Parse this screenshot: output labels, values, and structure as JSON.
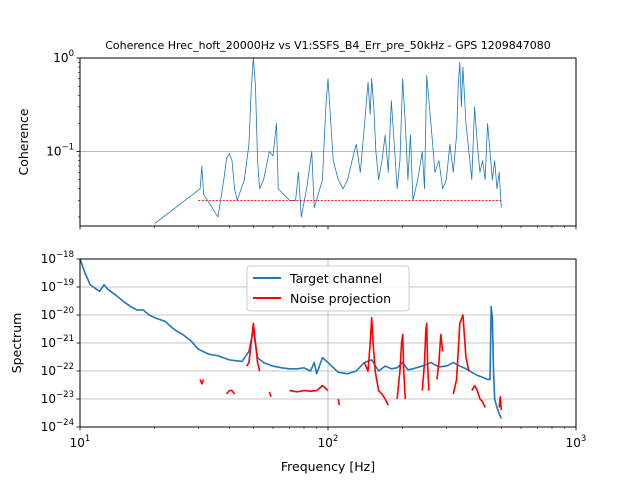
{
  "chart_data": [
    {
      "type": "line",
      "title": "Coherence Hrec_hoft_20000Hz vs V1:SSFS_B4_Err_pre_50kHz - GPS 1209847080",
      "xlabel": "",
      "ylabel": "Coherence",
      "xscale": "log",
      "yscale": "log",
      "xlim": [
        10,
        1000
      ],
      "ylim": [
        0.016,
        1
      ],
      "y_ticks": [
        {
          "base": "10",
          "exp": "−1",
          "value": 0.1
        },
        {
          "base": "10",
          "exp": "0",
          "value": 1
        }
      ],
      "grid": "horizontal major",
      "series": [
        {
          "color": "#1f77b4",
          "x": [
            20,
            30.5,
            31,
            31.5,
            36,
            38,
            39,
            40,
            41,
            42,
            43,
            46,
            48,
            49,
            50,
            51,
            52,
            53,
            55,
            58,
            60,
            62,
            63,
            70,
            74,
            76,
            78,
            82,
            86,
            88,
            95,
            98,
            100,
            105,
            110,
            115,
            120,
            125,
            130,
            135,
            140,
            145,
            148,
            150,
            153,
            156,
            160,
            165,
            170,
            175,
            180,
            185,
            190,
            195,
            200,
            205,
            210,
            215,
            220,
            230,
            240,
            245,
            250,
            260,
            270,
            280,
            290,
            300,
            310,
            320,
            330,
            335,
            340,
            345,
            350,
            360,
            370,
            380,
            390,
            400,
            410,
            420,
            430,
            440,
            450,
            460,
            470,
            480,
            490,
            500
          ],
          "y": [
            0.017,
            0.04,
            0.07,
            0.035,
            0.02,
            0.05,
            0.085,
            0.095,
            0.08,
            0.04,
            0.03,
            0.05,
            0.12,
            0.45,
            1.0,
            0.5,
            0.08,
            0.04,
            0.05,
            0.1,
            0.09,
            0.2,
            0.04,
            0.03,
            0.03,
            0.06,
            0.02,
            0.04,
            0.1,
            0.025,
            0.05,
            0.3,
            0.6,
            0.08,
            0.05,
            0.04,
            0.05,
            0.08,
            0.12,
            0.06,
            0.18,
            0.55,
            0.25,
            0.6,
            0.3,
            0.1,
            0.05,
            0.08,
            0.15,
            0.06,
            0.35,
            0.12,
            0.04,
            0.08,
            0.6,
            0.2,
            0.05,
            0.15,
            0.03,
            0.05,
            0.1,
            0.04,
            0.65,
            0.2,
            0.06,
            0.08,
            0.04,
            0.05,
            0.12,
            0.06,
            0.15,
            0.5,
            0.9,
            0.3,
            0.8,
            0.2,
            0.1,
            0.05,
            0.3,
            0.12,
            0.06,
            0.08,
            0.05,
            0.2,
            0.1,
            0.05,
            0.08,
            0.04,
            0.06,
            0.025
          ]
        },
        {
          "color": "#ff0000",
          "x": [
            30,
            500
          ],
          "y": [
            0.03,
            0.03
          ]
        }
      ]
    },
    {
      "type": "line",
      "title": "",
      "xlabel": "Frequency [Hz]",
      "ylabel": "Spectrum",
      "xscale": "log",
      "yscale": "log",
      "xlim": [
        10,
        1000
      ],
      "ylim": [
        1e-24,
        1e-18
      ],
      "x_ticks": [
        {
          "base": "10",
          "exp": "1",
          "value": 10
        },
        {
          "base": "10",
          "exp": "2",
          "value": 100
        },
        {
          "base": "10",
          "exp": "3",
          "value": 1000
        }
      ],
      "y_ticks": [
        {
          "base": "10",
          "exp": "−24",
          "value": 1e-24
        },
        {
          "base": "10",
          "exp": "−23",
          "value": 1e-23
        },
        {
          "base": "10",
          "exp": "−22",
          "value": 1e-22
        },
        {
          "base": "10",
          "exp": "−21",
          "value": 1e-21
        },
        {
          "base": "10",
          "exp": "−20",
          "value": 1e-20
        },
        {
          "base": "10",
          "exp": "−19",
          "value": 1e-19
        },
        {
          "base": "10",
          "exp": "−18",
          "value": 1e-18
        }
      ],
      "grid": "major",
      "legend_position": "upper-center",
      "series": [
        {
          "name": "Target channel",
          "color": "#1f77b4",
          "x": [
            10,
            10.5,
            11,
            11.5,
            12,
            12.5,
            13,
            14,
            15,
            16,
            17,
            18,
            19,
            20,
            22,
            24,
            26,
            28,
            30,
            33,
            36,
            40,
            45,
            48,
            50,
            52,
            55,
            60,
            65,
            70,
            75,
            80,
            85,
            88,
            90,
            95,
            100,
            110,
            120,
            130,
            140,
            150,
            160,
            170,
            180,
            190,
            200,
            210,
            220,
            240,
            260,
            280,
            300,
            320,
            340,
            360,
            380,
            400,
            420,
            440,
            450,
            455,
            460,
            465,
            470,
            480,
            490,
            500
          ],
          "y": [
            1e-18,
            3e-19,
            1.2e-19,
            9e-20,
            7e-20,
            1.2e-19,
            8e-20,
            5e-20,
            3e-20,
            2e-20,
            1.5e-20,
            1.5e-20,
            1e-20,
            8e-21,
            6e-21,
            3e-21,
            2e-21,
            1.2e-21,
            6e-22,
            4e-22,
            3.5e-22,
            2.5e-22,
            2.2e-22,
            5e-22,
            3e-21,
            3e-22,
            2e-22,
            1.5e-22,
            1.3e-22,
            1.2e-22,
            1.2e-22,
            1.3e-22,
            1e-22,
            2e-22,
            8e-23,
            3e-22,
            2e-22,
            9e-23,
            8e-23,
            1e-22,
            2e-22,
            2.5e-22,
            1e-22,
            1.5e-22,
            1.2e-22,
            1.3e-22,
            2e-22,
            1.1e-22,
            1.2e-22,
            1.5e-22,
            2e-22,
            1.4e-22,
            1.5e-22,
            2e-22,
            1.5e-22,
            1.2e-22,
            9e-23,
            7e-23,
            6e-23,
            5e-23,
            5e-23,
            2e-20,
            8e-21,
            1e-22,
            1e-23,
            5e-24,
            3e-24,
            2e-24
          ]
        },
        {
          "name": "Noise projection",
          "color": "#ff0000",
          "segments": [
            {
              "x": [
                30.5,
                31,
                31.5
              ],
              "y": [
                5e-23,
                3.5e-23,
                5e-23
              ]
            },
            {
              "x": [
                39,
                40,
                41,
                42
              ],
              "y": [
                1.5e-23,
                2e-23,
                2e-23,
                1.5e-23
              ]
            },
            {
              "x": [
                47,
                48,
                49,
                50,
                51,
                52,
                53
              ],
              "y": [
                1.5e-22,
                2e-22,
                1e-21,
                5e-21,
                1e-21,
                2e-22,
                1e-22
              ]
            },
            {
              "x": [
                58,
                59
              ],
              "y": [
                1.8e-23,
                1.2e-23
              ]
            },
            {
              "x": [
                70,
                75,
                80,
                85,
                90,
                95,
                100
              ],
              "y": [
                2e-23,
                1.8e-23,
                2e-23,
                1.9e-23,
                2e-23,
                3e-23,
                2e-23
              ]
            },
            {
              "x": [
                110,
                111
              ],
              "y": [
                1e-23,
                6e-24
              ]
            },
            {
              "x": [
                140,
                145,
                148,
                150,
                152,
                155,
                160,
                165,
                170,
                175
              ],
              "y": [
                2e-22,
                1e-22,
                1e-21,
                8e-21,
                1e-21,
                1e-22,
                2e-23,
                1.5e-23,
                1e-23,
                6e-24
              ]
            },
            {
              "x": [
                190,
                195,
                198,
                200,
                202,
                205
              ],
              "y": [
                1e-23,
                1e-22,
                1e-21,
                2e-21,
                1e-22,
                1e-23
              ]
            },
            {
              "x": [
                240,
                245,
                248,
                250,
                252,
                255
              ],
              "y": [
                2e-23,
                2e-22,
                3e-21,
                5e-21,
                2e-22,
                2e-23
              ]
            },
            {
              "x": [
                275,
                280,
                285,
                290
              ],
              "y": [
                5e-23,
                2e-22,
                2e-21,
                5e-22
              ]
            },
            {
              "x": [
                320,
                330,
                340,
                350,
                360,
                370
              ],
              "y": [
                1.5e-23,
                5e-23,
                5e-21,
                1e-20,
                3e-22,
                1e-22
              ]
            },
            {
              "x": [
                380,
                390,
                400,
                410,
                420,
                430
              ],
              "y": [
                2e-23,
                3e-23,
                2e-23,
                1e-23,
                8e-24,
                5e-24
              ]
            },
            {
              "x": [
                490,
                495,
                500
              ],
              "y": [
                5e-24,
                1.2e-23,
                4e-24
              ]
            }
          ]
        }
      ]
    }
  ]
}
